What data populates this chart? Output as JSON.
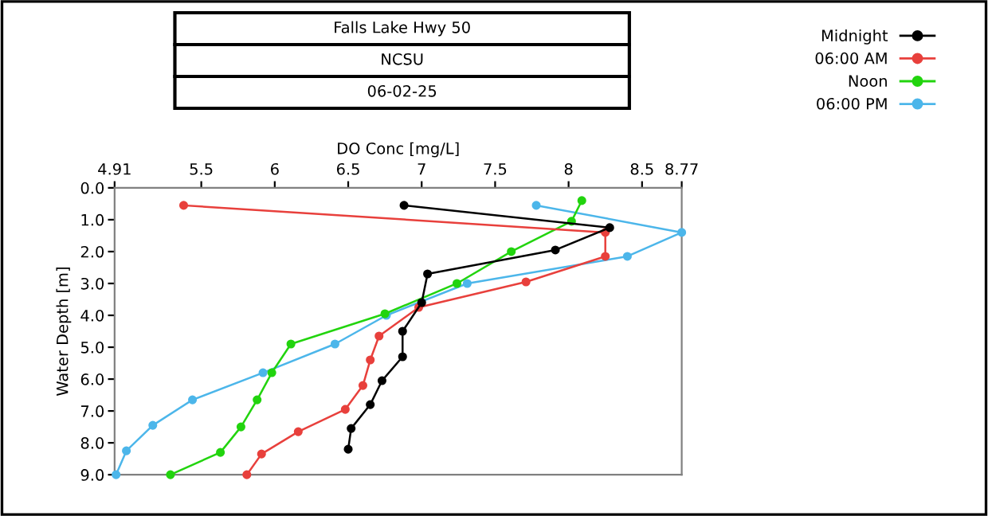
{
  "chart_data": {
    "type": "line",
    "title": "Falls Lake Hwy 50",
    "subtitle": "NCSU",
    "annotations": [
      "06-02-25"
    ],
    "xlabel": "DO Conc [mg/L]",
    "ylabel": "Water Depth [m]",
    "xlim": [
      4.91,
      8.77
    ],
    "xticks": [
      4.91,
      5.5,
      6,
      6.5,
      7,
      7.5,
      8,
      8.5,
      8.77
    ],
    "ylim": [
      9.0,
      0.0
    ],
    "yticks": [
      {
        "value": 0,
        "label": "0.0"
      },
      {
        "value": 1,
        "label": "1.0"
      },
      {
        "value": 2,
        "label": "2.0"
      },
      {
        "value": 3,
        "label": "3.0"
      },
      {
        "value": 4,
        "label": "4.0"
      },
      {
        "value": 5,
        "label": "5.0"
      },
      {
        "value": 6,
        "label": "6.0"
      },
      {
        "value": 7,
        "label": "7.0"
      },
      {
        "value": 8,
        "label": "8.0"
      },
      {
        "value": 9,
        "label": "9.0"
      }
    ],
    "marker": "circle",
    "line_style": "solid",
    "grid": false,
    "legend": "top right",
    "series": [
      {
        "name": "Midnight",
        "color": "#000000",
        "x": [
          6.88,
          8.28,
          7.91,
          7.04,
          7.0,
          6.87,
          6.87,
          6.73,
          6.65,
          6.52,
          6.5
        ],
        "values": [
          0.55,
          1.25,
          1.95,
          2.7,
          3.6,
          4.5,
          5.3,
          6.05,
          6.8,
          7.55,
          8.2
        ]
      },
      {
        "name": "06:00 AM",
        "color": "#e8403c",
        "x": [
          5.38,
          8.25,
          8.25,
          7.71,
          6.98,
          6.71,
          6.65,
          6.6,
          6.48,
          6.16,
          5.91,
          5.81
        ],
        "values": [
          0.55,
          1.4,
          2.15,
          2.95,
          3.75,
          4.65,
          5.4,
          6.2,
          6.95,
          7.65,
          8.35,
          9.0
        ]
      },
      {
        "name": "Noon",
        "color": "#22d40e",
        "x": [
          8.09,
          8.02,
          7.61,
          7.24,
          6.75,
          6.11,
          5.98,
          5.88,
          5.77,
          5.63,
          5.29
        ],
        "values": [
          0.4,
          1.05,
          2.0,
          3.0,
          3.95,
          4.9,
          5.8,
          6.65,
          7.5,
          8.3,
          9.0
        ]
      },
      {
        "name": "06:00 PM",
        "color": "#4cb6ea",
        "x": [
          7.78,
          8.77,
          8.4,
          7.31,
          6.76,
          6.41,
          5.92,
          5.44,
          5.17,
          4.99,
          4.92
        ],
        "values": [
          0.55,
          1.4,
          2.15,
          3.0,
          4.0,
          4.9,
          5.8,
          6.65,
          7.45,
          8.25,
          9.0
        ]
      }
    ]
  }
}
